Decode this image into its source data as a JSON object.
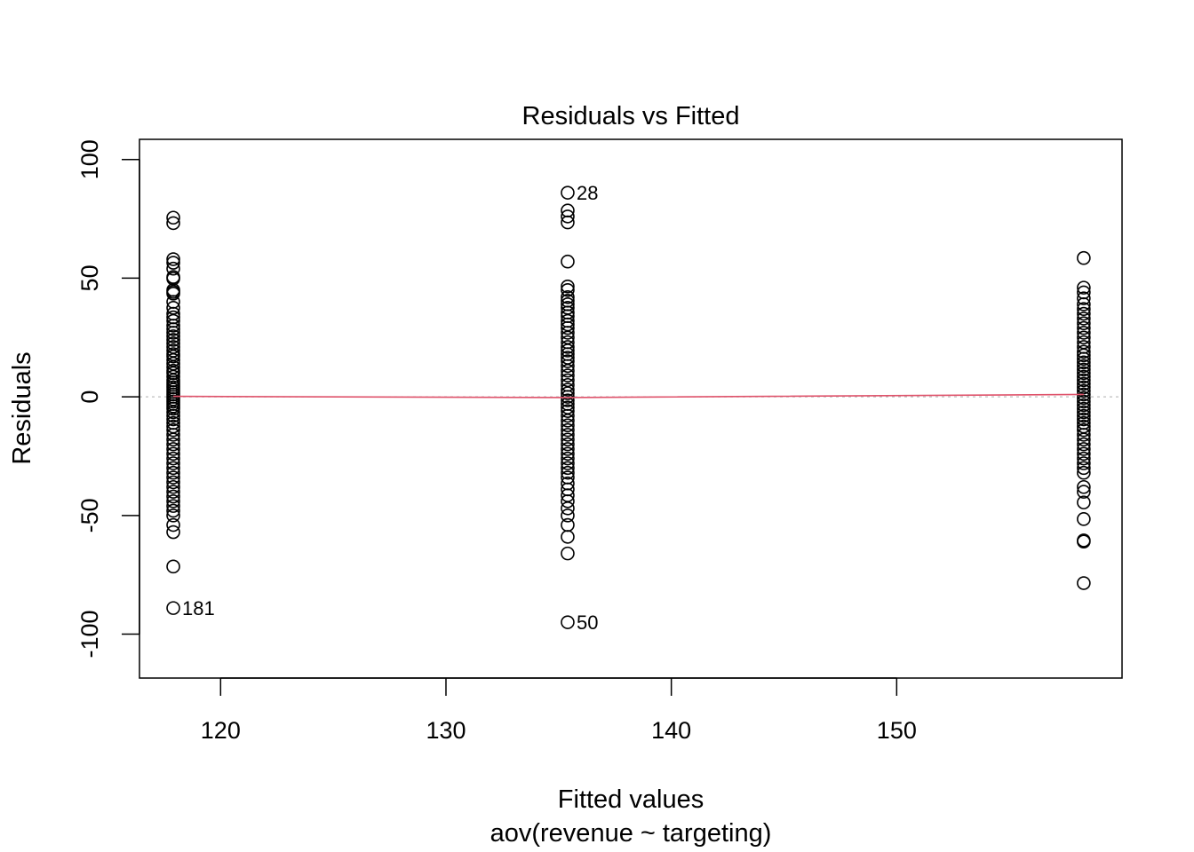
{
  "chart_data": {
    "type": "scatter",
    "title": "Residuals vs Fitted",
    "xlabel": "Fitted values",
    "subtitle": "aov(revenue ~ targeting)",
    "ylabel": "Residuals",
    "xlim": [
      116.4,
      160.0
    ],
    "ylim": [
      -118.5,
      108.5
    ],
    "x_ticks": [
      120,
      130,
      140,
      150
    ],
    "y_ticks": [
      -100,
      -50,
      0,
      50,
      100
    ],
    "grid": false,
    "reference_line": {
      "y": 0,
      "style": "dotted",
      "color": "#BEBEBE"
    },
    "smooth_line": {
      "color": "#DF536B",
      "x": [
        117.9,
        135.4,
        158.3
      ],
      "y": [
        0.2,
        -0.3,
        1.0
      ]
    },
    "point_style": {
      "shape": "open-circle",
      "color": "#000000"
    },
    "groups": [
      {
        "x": 117.9,
        "residuals": [
          75.5,
          73.2,
          58.0,
          56.5,
          54.0,
          50.5,
          49.8,
          45.0,
          44.2,
          43.5,
          40.0,
          37.5,
          35.0,
          33.5,
          32.0,
          30.0,
          28.5,
          27.0,
          25.5,
          24.0,
          22.5,
          21.0,
          19.5,
          18.0,
          17.0,
          15.5,
          14.0,
          12.5,
          11.0,
          10.0,
          8.5,
          7.0,
          6.0,
          5.0,
          4.0,
          3.0,
          2.0,
          1.0,
          0.0,
          -1.0,
          -2.0,
          -3.0,
          -4.0,
          -5.0,
          -6.5,
          -8.0,
          -9.5,
          -11.0,
          -12.5,
          -14.0,
          -16.0,
          -18.0,
          -20.0,
          -22.0,
          -24.0,
          -26.0,
          -28.0,
          -30.0,
          -32.0,
          -34.0,
          -36.0,
          -38.0,
          -40.0,
          -42.0,
          -44.0,
          -46.0,
          -48.0,
          -50.0,
          -54.0,
          -57.0,
          -71.5,
          -89.0
        ]
      },
      {
        "x": 135.4,
        "residuals": [
          86.0,
          78.5,
          76.0,
          73.5,
          57.0,
          46.5,
          45.0,
          42.0,
          40.5,
          39.0,
          37.5,
          35.5,
          34.0,
          32.0,
          30.5,
          29.0,
          27.0,
          25.0,
          23.0,
          21.0,
          19.5,
          18.0,
          16.5,
          15.0,
          13.0,
          11.0,
          9.0,
          7.0,
          5.0,
          3.0,
          1.5,
          0.0,
          -1.5,
          -3.0,
          -4.5,
          -6.0,
          -8.0,
          -10.0,
          -12.0,
          -14.0,
          -16.0,
          -18.0,
          -20.0,
          -22.0,
          -24.0,
          -26.0,
          -28.0,
          -30.0,
          -32.0,
          -34.0,
          -36.5,
          -39.0,
          -41.5,
          -44.0,
          -47.0,
          -50.0,
          -54.0,
          -59.0,
          -66.0,
          -95.0
        ]
      },
      {
        "x": 158.3,
        "residuals": [
          58.5,
          46.0,
          44.0,
          41.5,
          39.0,
          37.0,
          35.0,
          33.0,
          31.0,
          29.0,
          27.0,
          25.0,
          23.0,
          21.0,
          19.0,
          17.5,
          16.0,
          14.5,
          13.0,
          11.5,
          10.0,
          8.5,
          7.0,
          5.5,
          4.0,
          2.5,
          1.0,
          -0.5,
          -2.0,
          -3.5,
          -5.0,
          -6.5,
          -8.0,
          -9.5,
          -11.0,
          -12.5,
          -14.0,
          -16.0,
          -18.0,
          -20.0,
          -22.0,
          -24.0,
          -26.0,
          -28.0,
          -30.0,
          -32.0,
          -38.0,
          -40.0,
          -44.5,
          -51.5,
          -60.5,
          -61.0,
          -78.5
        ]
      }
    ],
    "labeled_points": [
      {
        "x": 135.4,
        "y": 86.0,
        "label": "28"
      },
      {
        "x": 135.4,
        "y": -95.0,
        "label": "50"
      },
      {
        "x": 117.9,
        "y": -89.0,
        "label": "181"
      }
    ]
  }
}
